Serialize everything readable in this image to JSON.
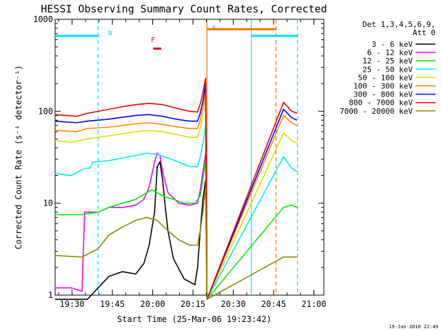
{
  "title": "HESSI Observing Summary Count Rates, Corrected",
  "footer_date": "19-Jan-2010 22:49",
  "legend": {
    "header_line1": "Det 1,3,4,5,6,9,",
    "header_line2": "Att 0"
  },
  "flags": {
    "n_label": "N",
    "f_label": "F",
    "s_label": "S",
    "n_color": "#00e5ee",
    "f_color": "#e00000",
    "s_color": "#ee7700"
  },
  "chart_data": {
    "type": "line",
    "title": "HESSI Observing Summary Count Rates, Corrected",
    "xlabel": "Start Time (25-Mar-06 19:23:42)",
    "ylabel": "Corrected Count Rate (s⁻¹ detector⁻¹)",
    "x_unit": "minutes since 19:23:42",
    "xlim": [
      0,
      100
    ],
    "ylim": [
      1,
      1000
    ],
    "y_scale": "log",
    "x_ticks": [
      {
        "x": 6.3,
        "label": "19:30"
      },
      {
        "x": 21.3,
        "label": "19:45"
      },
      {
        "x": 36.3,
        "label": "20:00"
      },
      {
        "x": 51.3,
        "label": "20:15"
      },
      {
        "x": 66.3,
        "label": "20:30"
      },
      {
        "x": 81.3,
        "label": "20:45"
      },
      {
        "x": 96.3,
        "label": "21:00"
      }
    ],
    "y_ticks": [
      {
        "y": 1,
        "label": "1"
      },
      {
        "y": 10,
        "label": "10"
      },
      {
        "y": 100,
        "label": "100"
      },
      {
        "y": 1000,
        "label": "1000"
      }
    ],
    "vertical_lines": [
      {
        "x": 16.0,
        "color": "#00e5ee",
        "dash": true
      },
      {
        "x": 56.5,
        "color": "#ee7700",
        "dash": false
      },
      {
        "x": 73.0,
        "color": "#00e5ee",
        "dash": false
      },
      {
        "x": 82.2,
        "color": "#ee7700",
        "dash": true
      },
      {
        "x": 90.2,
        "color": "#00e5ee",
        "dash": true
      }
    ],
    "flag_bars": [
      {
        "label": "N",
        "y": 660,
        "segments": [
          [
            0,
            16.0
          ],
          [
            73.0,
            90.2
          ]
        ],
        "color": "#00e5ee"
      },
      {
        "label": "F",
        "y": 480,
        "segments": [
          [
            36.5,
            39.5
          ]
        ],
        "color": "#e00000"
      },
      {
        "label": "S",
        "y": 780,
        "segments": [
          [
            56.5,
            82.2
          ]
        ],
        "color": "#ee7700"
      }
    ],
    "series": [
      {
        "name": "3 - 6 keV",
        "color": "#000000",
        "points": [
          [
            0,
            0.9
          ],
          [
            12,
            0.9
          ],
          [
            16,
            1.2
          ],
          [
            20,
            1.6
          ],
          [
            25,
            1.8
          ],
          [
            30,
            1.7
          ],
          [
            33,
            2.2
          ],
          [
            35,
            3.5
          ],
          [
            37,
            8
          ],
          [
            38,
            25
          ],
          [
            39,
            28
          ],
          [
            40,
            18
          ],
          [
            41,
            9
          ],
          [
            42,
            5
          ],
          [
            44,
            2.5
          ],
          [
            48,
            1.5
          ],
          [
            52,
            1.3
          ],
          [
            53,
            2
          ],
          [
            54,
            5
          ],
          [
            55,
            11
          ],
          [
            56,
            18
          ],
          [
            56.5,
            0.9
          ]
        ]
      },
      {
        "name": "6 - 12 keV",
        "color": "#ee00ee",
        "points": [
          [
            0,
            1.2
          ],
          [
            6,
            1.2
          ],
          [
            10,
            1.1
          ],
          [
            11,
            8
          ],
          [
            16,
            8
          ],
          [
            20,
            9
          ],
          [
            25,
            9
          ],
          [
            30,
            9.5
          ],
          [
            33,
            11
          ],
          [
            35,
            15
          ],
          [
            37,
            28
          ],
          [
            38,
            35
          ],
          [
            39,
            33
          ],
          [
            40,
            22
          ],
          [
            42,
            13
          ],
          [
            46,
            10
          ],
          [
            50,
            9.5
          ],
          [
            53,
            10
          ],
          [
            54,
            14
          ],
          [
            55,
            22
          ],
          [
            56,
            35
          ],
          [
            56.5,
            0.9
          ]
        ]
      },
      {
        "name": "12 - 25 keV",
        "color": "#00ee00",
        "points": [
          [
            0,
            7.5
          ],
          [
            10,
            7.5
          ],
          [
            16,
            8
          ],
          [
            20,
            9
          ],
          [
            25,
            10
          ],
          [
            30,
            11
          ],
          [
            34,
            13
          ],
          [
            36,
            14
          ],
          [
            38,
            13
          ],
          [
            40,
            12
          ],
          [
            44,
            11
          ],
          [
            48,
            10
          ],
          [
            52,
            10
          ],
          [
            54,
            12
          ],
          [
            55,
            18
          ],
          [
            56,
            30
          ],
          [
            56.5,
            0.9
          ],
          [
            85,
            9
          ],
          [
            88,
            9.5
          ],
          [
            90,
            9
          ]
        ]
      },
      {
        "name": "25 - 50 keV",
        "color": "#00eeee",
        "points": [
          [
            0,
            21
          ],
          [
            6,
            20
          ],
          [
            11,
            24
          ],
          [
            13,
            24
          ],
          [
            14,
            28
          ],
          [
            20,
            29
          ],
          [
            25,
            31
          ],
          [
            30,
            33
          ],
          [
            34,
            35
          ],
          [
            38,
            34
          ],
          [
            42,
            31
          ],
          [
            46,
            28
          ],
          [
            50,
            25
          ],
          [
            53,
            25
          ],
          [
            54,
            32
          ],
          [
            55,
            45
          ],
          [
            56,
            70
          ],
          [
            56.5,
            0.9
          ],
          [
            85,
            32
          ],
          [
            88,
            24
          ],
          [
            90,
            22
          ]
        ]
      },
      {
        "name": "50 - 100 keV",
        "color": "#dddd00",
        "points": [
          [
            0,
            48
          ],
          [
            6,
            46
          ],
          [
            12,
            50
          ],
          [
            20,
            54
          ],
          [
            25,
            57
          ],
          [
            30,
            60
          ],
          [
            35,
            62
          ],
          [
            40,
            60
          ],
          [
            45,
            56
          ],
          [
            50,
            52
          ],
          [
            53,
            52
          ],
          [
            54,
            65
          ],
          [
            55,
            90
          ],
          [
            56,
            140
          ],
          [
            56.5,
            0.9
          ],
          [
            85,
            58
          ],
          [
            88,
            48
          ],
          [
            90,
            45
          ]
        ]
      },
      {
        "name": "100 - 300 keV",
        "color": "#ff8800",
        "points": [
          [
            0,
            62
          ],
          [
            8,
            60
          ],
          [
            12,
            65
          ],
          [
            20,
            67
          ],
          [
            25,
            70
          ],
          [
            30,
            73
          ],
          [
            35,
            75
          ],
          [
            40,
            72
          ],
          [
            45,
            68
          ],
          [
            50,
            65
          ],
          [
            53,
            65
          ],
          [
            54,
            80
          ],
          [
            55,
            110
          ],
          [
            56,
            170
          ],
          [
            56.5,
            0.9
          ],
          [
            85,
            90
          ],
          [
            88,
            75
          ],
          [
            90,
            70
          ]
        ]
      },
      {
        "name": "300 - 800 keV",
        "color": "#0000ee",
        "points": [
          [
            0,
            78
          ],
          [
            8,
            75
          ],
          [
            12,
            78
          ],
          [
            20,
            82
          ],
          [
            25,
            86
          ],
          [
            30,
            90
          ],
          [
            35,
            92
          ],
          [
            40,
            88
          ],
          [
            45,
            82
          ],
          [
            50,
            78
          ],
          [
            53,
            78
          ],
          [
            54,
            95
          ],
          [
            55,
            130
          ],
          [
            56,
            200
          ],
          [
            56.5,
            0.9
          ],
          [
            85,
            105
          ],
          [
            88,
            85
          ],
          [
            90,
            80
          ]
        ]
      },
      {
        "name": "800 - 7000 keV",
        "color": "#ee0000",
        "points": [
          [
            0,
            92
          ],
          [
            8,
            88
          ],
          [
            12,
            95
          ],
          [
            20,
            105
          ],
          [
            25,
            112
          ],
          [
            30,
            118
          ],
          [
            35,
            122
          ],
          [
            40,
            118
          ],
          [
            45,
            108
          ],
          [
            50,
            100
          ],
          [
            53,
            98
          ],
          [
            54,
            120
          ],
          [
            55,
            160
          ],
          [
            56,
            230
          ],
          [
            56.5,
            0.9
          ],
          [
            85,
            125
          ],
          [
            88,
            100
          ],
          [
            90,
            95
          ]
        ]
      },
      {
        "name": "7000 - 20000 keV",
        "color": "#888800",
        "points": [
          [
            0,
            2.7
          ],
          [
            10,
            2.6
          ],
          [
            16,
            3.2
          ],
          [
            20,
            4.5
          ],
          [
            25,
            5.5
          ],
          [
            30,
            6.5
          ],
          [
            34,
            7
          ],
          [
            38,
            6.5
          ],
          [
            42,
            5
          ],
          [
            46,
            4
          ],
          [
            50,
            3.5
          ],
          [
            53,
            3.5
          ],
          [
            54,
            5
          ],
          [
            55,
            8
          ],
          [
            56,
            15
          ],
          [
            56.5,
            0.9
          ],
          [
            85,
            2.6
          ],
          [
            88,
            2.6
          ],
          [
            90,
            2.6
          ]
        ]
      }
    ]
  }
}
